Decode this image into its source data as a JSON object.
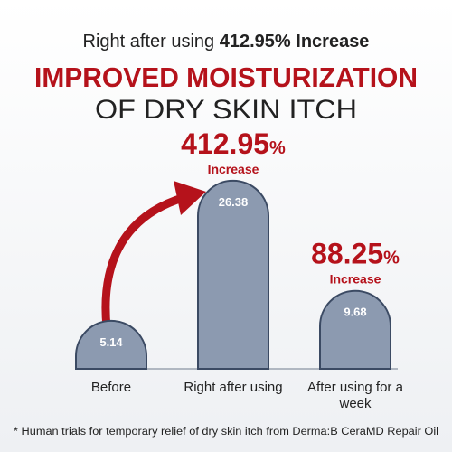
{
  "chart_data": {
    "type": "bar",
    "header": {
      "prefix": "Right after using",
      "highlight": "412.95% Increase"
    },
    "title": "IMPROVED MOISTURIZATION",
    "subtitle": "OF DRY SKIN ITCH",
    "categories": [
      "Before",
      "Right after using",
      "After using for a week"
    ],
    "values": [
      5.14,
      26.38,
      9.68
    ],
    "color": "#8c9ab0",
    "annotations": [
      {
        "category": 1,
        "number": "412.95",
        "unit": "%",
        "note": "Increase"
      },
      {
        "category": 2,
        "number": "88.25",
        "unit": "%",
        "note": "Increase"
      }
    ],
    "footnote": "* Human trials for temporary relief of dry skin itch from Derma:B CeraMD Repair Oil"
  }
}
